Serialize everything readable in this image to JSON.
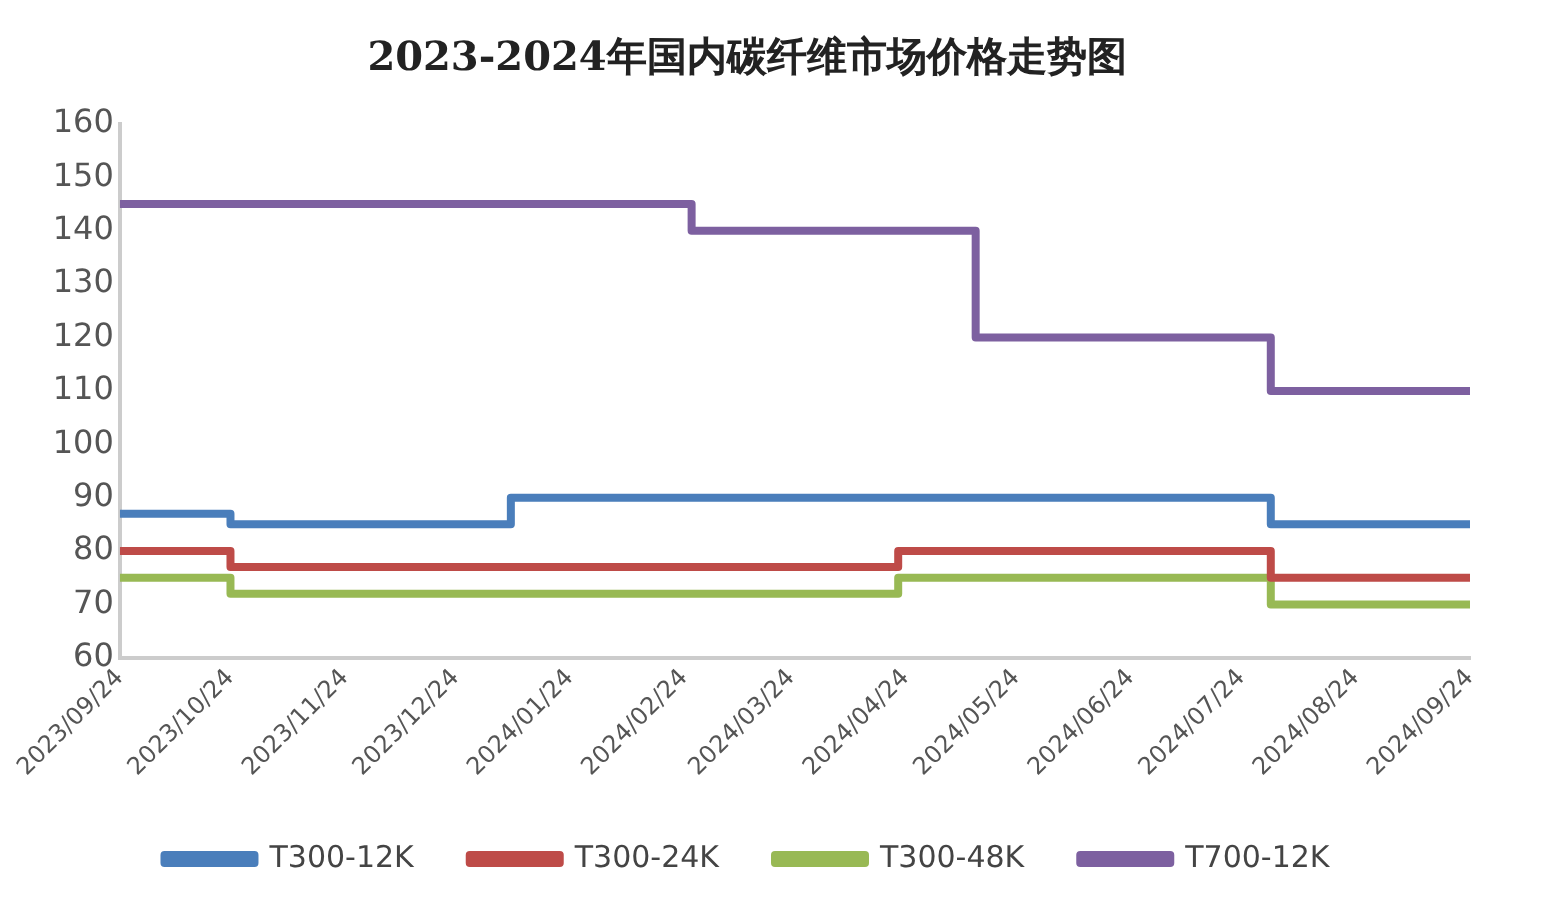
{
  "chart_data": {
    "type": "step",
    "title": "2023-2024年国内碳纤维市场价格走势图",
    "xlim": [
      "2023-09-24",
      "2024-09-24"
    ],
    "xticks": [
      {
        "value": "2023-09-24",
        "label": "2023/09/24"
      },
      {
        "value": "2023-10-24",
        "label": "2023/10/24"
      },
      {
        "value": "2023-11-24",
        "label": "2023/11/24"
      },
      {
        "value": "2023-12-24",
        "label": "2023/12/24"
      },
      {
        "value": "2024-01-24",
        "label": "2024/01/24"
      },
      {
        "value": "2024-02-24",
        "label": "2024/02/24"
      },
      {
        "value": "2024-03-24",
        "label": "2024/03/24"
      },
      {
        "value": "2024-04-24",
        "label": "2024/04/24"
      },
      {
        "value": "2024-05-24",
        "label": "2024/05/24"
      },
      {
        "value": "2024-06-24",
        "label": "2024/06/24"
      },
      {
        "value": "2024-07-24",
        "label": "2024/07/24"
      },
      {
        "value": "2024-08-24",
        "label": "2024/08/24"
      },
      {
        "value": "2024-09-24",
        "label": "2024/09/24"
      }
    ],
    "ylim": [
      60,
      160
    ],
    "yticks": [
      60,
      70,
      80,
      90,
      100,
      110,
      120,
      130,
      140,
      150,
      160
    ],
    "grid": false,
    "legend": "bottom",
    "marker": "none",
    "line_style": "solid",
    "series": [
      {
        "name": "T300-12K",
        "color": "#4a7ebb",
        "x": [
          "2023-09-24",
          "2023-10-24",
          "2024-01-08",
          "2024-08-01",
          "2024-09-24"
        ],
        "values": [
          87,
          85,
          90,
          85,
          85
        ]
      },
      {
        "name": "T300-24K",
        "color": "#be4b48",
        "x": [
          "2023-09-24",
          "2023-10-24",
          "2024-04-22",
          "2024-08-01",
          "2024-09-24"
        ],
        "values": [
          80,
          77,
          80,
          75,
          75
        ]
      },
      {
        "name": "T300-48K",
        "color": "#98b954",
        "x": [
          "2023-09-24",
          "2023-10-24",
          "2024-04-22",
          "2024-08-01",
          "2024-09-24"
        ],
        "values": [
          75,
          72,
          75,
          70,
          70
        ]
      },
      {
        "name": "T700-12K",
        "color": "#7d60a0",
        "x": [
          "2023-09-24",
          "2024-02-26",
          "2024-05-13",
          "2024-08-01",
          "2024-09-24"
        ],
        "values": [
          145,
          140,
          120,
          110,
          110
        ]
      }
    ]
  }
}
